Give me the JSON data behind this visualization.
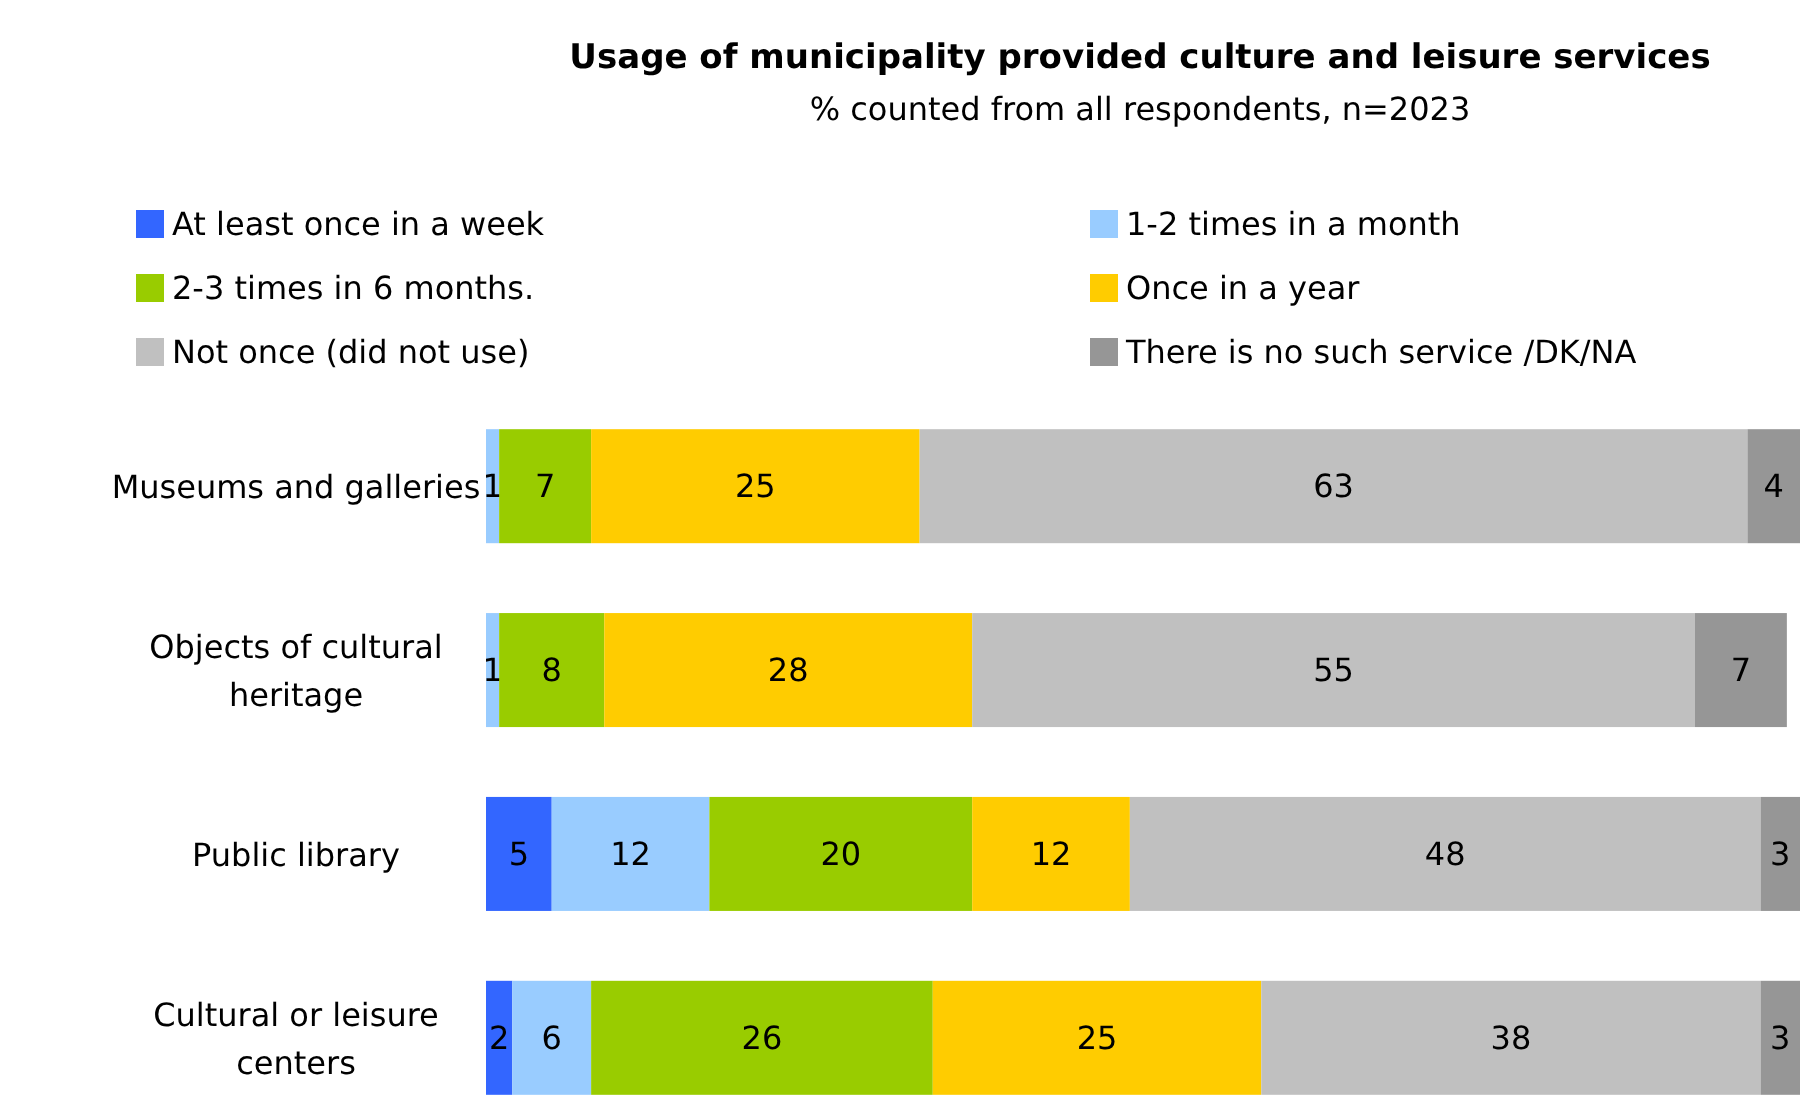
{
  "chart_data": {
    "type": "bar",
    "orientation": "horizontal",
    "stacked": true,
    "title": "Usage of municipality provided culture and leisure services",
    "subtitle": "% counted from all respondents, n=2023",
    "categories": [
      "Museums and galleries",
      "Objects of cultural heritage",
      "Public library",
      "Cultural or leisure centers"
    ],
    "xlim": [
      0,
      100
    ],
    "tick_labels": "y",
    "legend": "top",
    "series": [
      {
        "name": "At least once in a week",
        "color": "#3366ff",
        "values": [
          0,
          0,
          5,
          2
        ],
        "value_labels": [
          null,
          null,
          "5",
          "2"
        ]
      },
      {
        "name": "1-2  times in a month",
        "color": "#99ccff",
        "values": [
          1,
          1,
          12,
          6
        ],
        "value_labels": [
          "1",
          "1",
          "12",
          "6"
        ]
      },
      {
        "name": "2-3 times in 6 months.",
        "color": "#99cc00",
        "values": [
          7,
          8,
          20,
          26
        ],
        "value_labels": [
          "7",
          "8",
          "20",
          "26"
        ]
      },
      {
        "name": "Once in a year",
        "color": "#ffcc00",
        "values": [
          25,
          28,
          12,
          25
        ],
        "value_labels": [
          "25",
          "28",
          "12",
          "25"
        ]
      },
      {
        "name": "Not once (did not use)",
        "color": "#c0c0c0",
        "values": [
          63,
          55,
          48,
          38
        ],
        "value_labels": [
          "63",
          "55",
          "48",
          "38"
        ]
      },
      {
        "name": "There is no such service /DK/NA",
        "color": "#969696",
        "values": [
          4,
          7,
          3,
          3
        ],
        "value_labels": [
          "4",
          "7",
          "3",
          "3"
        ]
      }
    ]
  }
}
